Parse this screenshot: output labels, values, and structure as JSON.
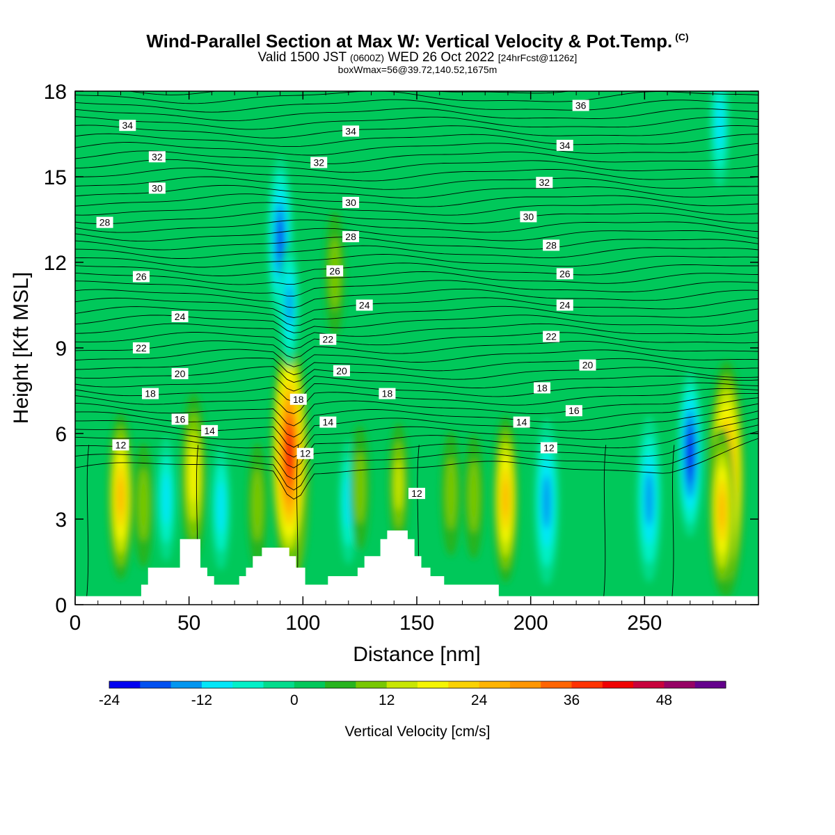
{
  "header": {
    "title": "Wind-Parallel Section at Max W: Vertical Velocity & Pot.Temp.",
    "copyright": "(C)",
    "valid_prefix": "Valid 1500 JST",
    "valid_utc": "(0600Z)",
    "valid_date": "WED 26 Oct 2022",
    "forecast": "[24hrFcst@1126z]",
    "box_info": "boxWmax=56@39.72,140.52,1675m"
  },
  "chart_data": {
    "type": "heatmap",
    "xlabel": "Distance [nm]",
    "ylabel": "Height [Kft MSL]",
    "xlim": [
      0,
      300
    ],
    "ylim": [
      0,
      18
    ],
    "x_ticks": [
      0,
      50,
      100,
      150,
      200,
      250
    ],
    "y_ticks": [
      0,
      3,
      6,
      9,
      12,
      15,
      18
    ],
    "grid": false,
    "background_color": "#00c85a",
    "colorbar": {
      "title": "Vertical Velocity [cm/s]",
      "ticks": [
        -24,
        -12,
        0,
        12,
        24,
        36,
        48
      ],
      "levels": [
        -24,
        -20,
        -16,
        -12,
        -8,
        -4,
        0,
        4,
        8,
        12,
        16,
        20,
        24,
        28,
        32,
        36,
        40,
        44,
        48,
        52
      ],
      "colors": [
        "#0000f0",
        "#0050f0",
        "#0096f0",
        "#00e6f8",
        "#00f0c8",
        "#00dc8c",
        "#00c85a",
        "#28b41e",
        "#78c800",
        "#c8e600",
        "#f5f500",
        "#fad200",
        "#ffb400",
        "#ff9600",
        "#ff6400",
        "#ff3200",
        "#f00000",
        "#c8003c",
        "#960064",
        "#64008c"
      ]
    },
    "vertical_velocity_cells": [
      {
        "x": 20,
        "z": 3.8,
        "w": 24
      },
      {
        "x": 52,
        "z": 4.5,
        "w": 16
      },
      {
        "x": 95,
        "z": 4.7,
        "w": 44
      },
      {
        "x": 94,
        "z": 5.3,
        "w": 38
      },
      {
        "x": 189,
        "z": 3.7,
        "w": 24
      },
      {
        "x": 142,
        "z": 4.2,
        "w": 12
      },
      {
        "x": 286,
        "z": 4.4,
        "w": 32
      },
      {
        "x": 284,
        "z": 3.3,
        "w": 24
      },
      {
        "x": 90,
        "z": 12.8,
        "w": -20
      },
      {
        "x": 94,
        "z": 10.5,
        "w": -14
      },
      {
        "x": 207,
        "z": 3.6,
        "w": -16
      },
      {
        "x": 252,
        "z": 3.7,
        "w": -16
      },
      {
        "x": 270,
        "z": 5.3,
        "w": -24
      },
      {
        "x": 64,
        "z": 3.4,
        "w": -12
      },
      {
        "x": 40,
        "z": 3.7,
        "w": -10
      },
      {
        "x": 120,
        "z": 3.6,
        "w": -10
      },
      {
        "x": 283,
        "z": 16.8,
        "w": -10
      },
      {
        "x": 114,
        "z": 11.6,
        "w": 6
      },
      {
        "x": 175,
        "z": 3.8,
        "w": 8
      },
      {
        "x": 165,
        "z": 3.9,
        "w": 6
      },
      {
        "x": 125,
        "z": 4.1,
        "w": 6
      },
      {
        "x": 80,
        "z": 3.5,
        "w": 6
      },
      {
        "x": 30,
        "z": 3.5,
        "w": 6
      }
    ],
    "terrain_kft": [
      {
        "x": 0,
        "z": 0.3
      },
      {
        "x": 29,
        "z": 0.3
      },
      {
        "x": 29,
        "z": 0.7
      },
      {
        "x": 32,
        "z": 0.7
      },
      {
        "x": 32,
        "z": 1.3
      },
      {
        "x": 46,
        "z": 1.3
      },
      {
        "x": 46,
        "z": 2.3
      },
      {
        "x": 55,
        "z": 2.3
      },
      {
        "x": 55,
        "z": 1.3
      },
      {
        "x": 58,
        "z": 1.3
      },
      {
        "x": 58,
        "z": 1.0
      },
      {
        "x": 61,
        "z": 1.0
      },
      {
        "x": 61,
        "z": 0.7
      },
      {
        "x": 72,
        "z": 0.7
      },
      {
        "x": 72,
        "z": 1.0
      },
      {
        "x": 75,
        "z": 1.0
      },
      {
        "x": 75,
        "z": 1.3
      },
      {
        "x": 78,
        "z": 1.3
      },
      {
        "x": 78,
        "z": 1.7
      },
      {
        "x": 82,
        "z": 1.7
      },
      {
        "x": 82,
        "z": 2.0
      },
      {
        "x": 94,
        "z": 2.0
      },
      {
        "x": 94,
        "z": 1.7
      },
      {
        "x": 97,
        "z": 1.7
      },
      {
        "x": 97,
        "z": 1.3
      },
      {
        "x": 101,
        "z": 1.3
      },
      {
        "x": 101,
        "z": 0.7
      },
      {
        "x": 111,
        "z": 0.7
      },
      {
        "x": 111,
        "z": 1.0
      },
      {
        "x": 124,
        "z": 1.0
      },
      {
        "x": 124,
        "z": 1.3
      },
      {
        "x": 127,
        "z": 1.3
      },
      {
        "x": 127,
        "z": 1.7
      },
      {
        "x": 134,
        "z": 1.7
      },
      {
        "x": 134,
        "z": 2.3
      },
      {
        "x": 137,
        "z": 2.3
      },
      {
        "x": 137,
        "z": 2.6
      },
      {
        "x": 146,
        "z": 2.6
      },
      {
        "x": 146,
        "z": 2.3
      },
      {
        "x": 149,
        "z": 2.3
      },
      {
        "x": 149,
        "z": 1.7
      },
      {
        "x": 152,
        "z": 1.7
      },
      {
        "x": 152,
        "z": 1.3
      },
      {
        "x": 156,
        "z": 1.3
      },
      {
        "x": 156,
        "z": 1.0
      },
      {
        "x": 162,
        "z": 1.0
      },
      {
        "x": 162,
        "z": 0.7
      },
      {
        "x": 186,
        "z": 0.7
      },
      {
        "x": 186,
        "z": 0.3
      },
      {
        "x": 300,
        "z": 0.3
      }
    ],
    "theta_levels": [
      12,
      14,
      16,
      18,
      20,
      22,
      24,
      26,
      28,
      30,
      32,
      34,
      36
    ],
    "theta_labels": [
      {
        "text": "12",
        "x": 20,
        "z": 5.6
      },
      {
        "text": "14",
        "x": 59,
        "z": 6.1
      },
      {
        "text": "16",
        "x": 46,
        "z": 6.5
      },
      {
        "text": "18",
        "x": 33,
        "z": 7.4
      },
      {
        "text": "20",
        "x": 46,
        "z": 8.1
      },
      {
        "text": "22",
        "x": 29,
        "z": 9.0
      },
      {
        "text": "24",
        "x": 46,
        "z": 10.1
      },
      {
        "text": "26",
        "x": 29,
        "z": 11.5
      },
      {
        "text": "28",
        "x": 13,
        "z": 13.4
      },
      {
        "text": "30",
        "x": 36,
        "z": 14.6
      },
      {
        "text": "32",
        "x": 36,
        "z": 15.7
      },
      {
        "text": "34",
        "x": 23,
        "z": 16.8
      },
      {
        "text": "18",
        "x": 98,
        "z": 7.2
      },
      {
        "text": "12",
        "x": 101,
        "z": 5.3
      },
      {
        "text": "14",
        "x": 111,
        "z": 6.4
      },
      {
        "text": "20",
        "x": 117,
        "z": 8.2
      },
      {
        "text": "22",
        "x": 111,
        "z": 9.3
      },
      {
        "text": "24",
        "x": 127,
        "z": 10.5
      },
      {
        "text": "26",
        "x": 114,
        "z": 11.7
      },
      {
        "text": "28",
        "x": 121,
        "z": 12.9
      },
      {
        "text": "30",
        "x": 121,
        "z": 14.1
      },
      {
        "text": "32",
        "x": 107,
        "z": 15.5
      },
      {
        "text": "34",
        "x": 121,
        "z": 16.6
      },
      {
        "text": "18",
        "x": 137,
        "z": 7.4
      },
      {
        "text": "12",
        "x": 150,
        "z": 3.9
      },
      {
        "text": "14",
        "x": 196,
        "z": 6.4
      },
      {
        "text": "12",
        "x": 208,
        "z": 5.5
      },
      {
        "text": "18",
        "x": 205,
        "z": 7.6
      },
      {
        "text": "16",
        "x": 219,
        "z": 6.8
      },
      {
        "text": "20",
        "x": 225,
        "z": 8.4
      },
      {
        "text": "22",
        "x": 209,
        "z": 9.4
      },
      {
        "text": "24",
        "x": 215,
        "z": 10.5
      },
      {
        "text": "26",
        "x": 215,
        "z": 11.6
      },
      {
        "text": "28",
        "x": 209,
        "z": 12.6
      },
      {
        "text": "30",
        "x": 199,
        "z": 13.6
      },
      {
        "text": "32",
        "x": 206,
        "z": 14.8
      },
      {
        "text": "34",
        "x": 215,
        "z": 16.1
      },
      {
        "text": "36",
        "x": 222,
        "z": 17.5
      }
    ]
  }
}
